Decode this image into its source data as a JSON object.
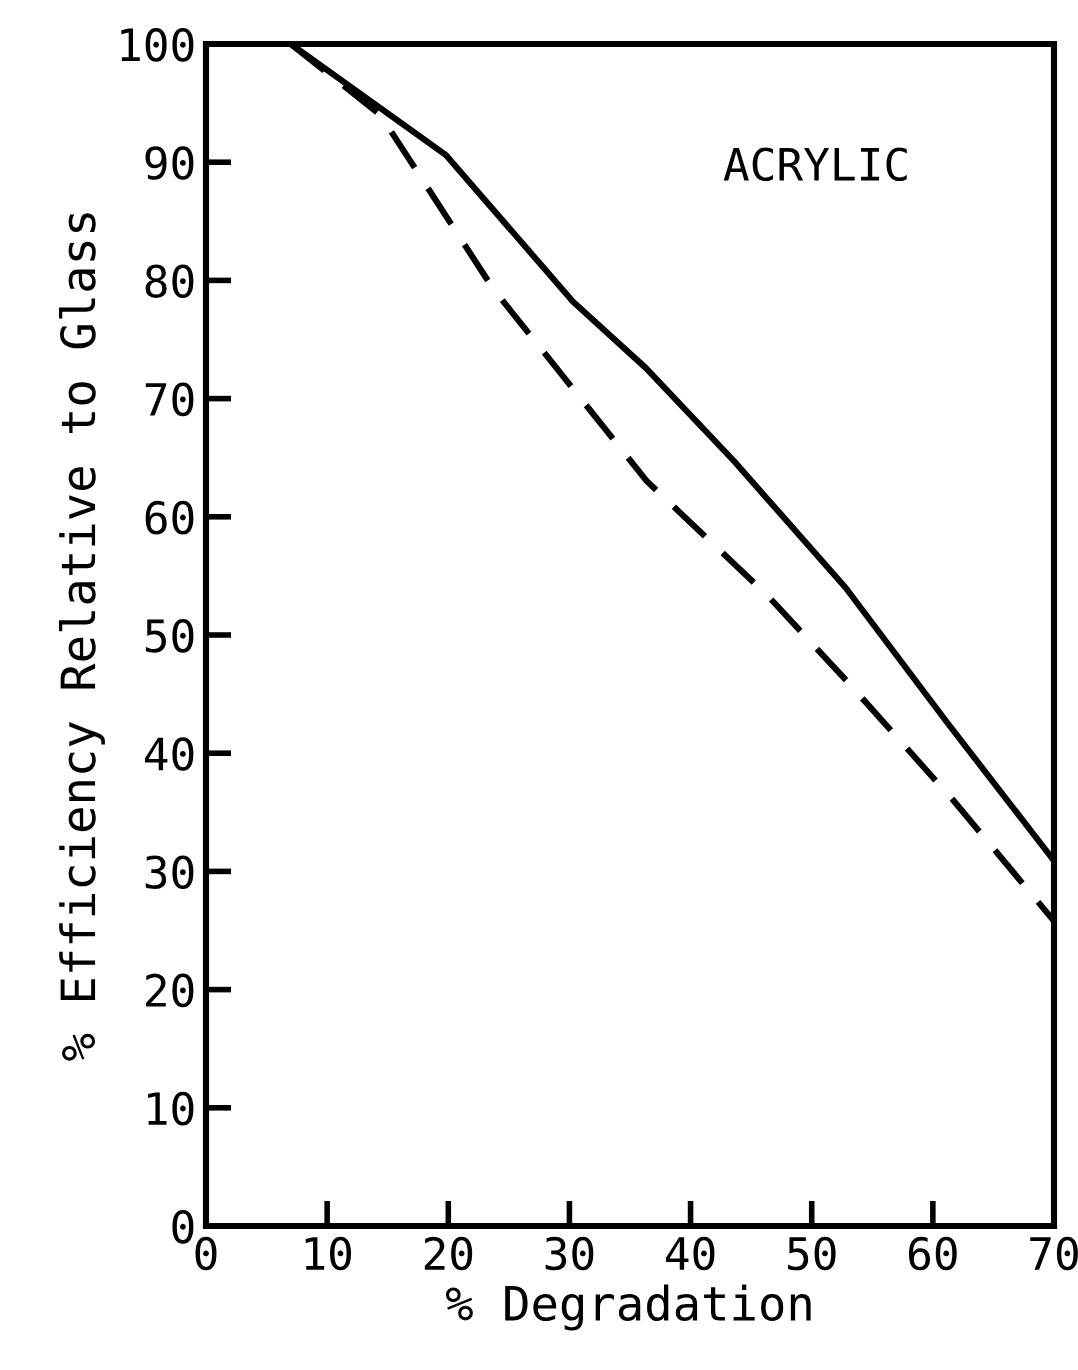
{
  "chart_data": {
    "type": "line",
    "xlabel": "% Degradation",
    "ylabel": "% Efficiency Relative to Glass",
    "annotations": [
      "ACRYLIC"
    ],
    "series": [
      {
        "color": "#000000",
        "line_style": "solid",
        "x": [
          7,
          19.8,
          30.3,
          36.3,
          43.6,
          52.8,
          61.1,
          70
        ],
        "values": [
          100,
          90.6,
          78.2,
          72.6,
          64.7,
          54,
          42.7,
          30.9
        ]
      },
      {
        "color": "#000000",
        "line_style": "dashed",
        "x": [
          7,
          14.4,
          23.7,
          36.4,
          46.3,
          52.9,
          61.7,
          70
        ],
        "values": [
          100,
          94,
          79.3,
          63,
          53.4,
          46.1,
          36,
          25.8
        ]
      }
    ],
    "xlim": [
      0,
      70
    ],
    "ylim": [
      0,
      100
    ],
    "xticks": [
      0,
      10,
      20,
      30,
      40,
      50,
      60,
      70
    ],
    "yticks": [
      0,
      10,
      20,
      30,
      40,
      50,
      60,
      70,
      80,
      90,
      100
    ],
    "grid": false,
    "legend": false,
    "marker": "none"
  }
}
